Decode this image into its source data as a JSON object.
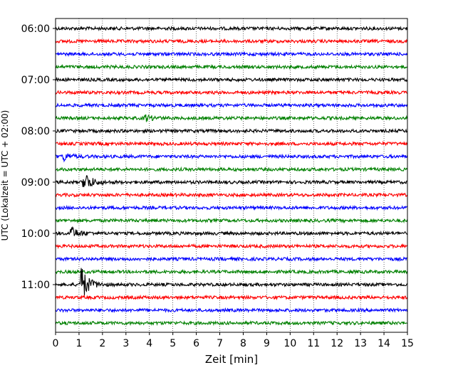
{
  "chart_data": {
    "type": "line",
    "subtype": "helicorder",
    "xlabel": "Zeit  [min]",
    "ylabel": "UTC (Lokalzeit = UTC + 02:00)",
    "xlim": [
      0,
      15
    ],
    "xticks": [
      "0",
      "1",
      "2",
      "3",
      "4",
      "5",
      "6",
      "7",
      "8",
      "9",
      "10",
      "11",
      "12",
      "13",
      "14",
      "15"
    ],
    "yticks": [
      "06:00",
      "07:00",
      "08:00",
      "09:00",
      "10:00",
      "11:00"
    ],
    "grid": "vertical dotted at each minute",
    "colors": [
      "#000000",
      "#ff0000",
      "#0000ff",
      "#008000"
    ],
    "row_start_times": [
      "06:00",
      "06:15",
      "06:30",
      "06:45",
      "07:00",
      "07:15",
      "07:30",
      "07:45",
      "08:00",
      "08:15",
      "08:30",
      "08:45",
      "09:00",
      "09:15",
      "09:30",
      "09:45",
      "10:00",
      "10:15",
      "10:30",
      "10:45",
      "11:00",
      "11:15",
      "11:30",
      "11:45"
    ],
    "row_colors": [
      "black",
      "red",
      "blue",
      "green",
      "black",
      "red",
      "blue",
      "green",
      "black",
      "red",
      "blue",
      "green",
      "black",
      "red",
      "blue",
      "green",
      "black",
      "red",
      "blue",
      "green",
      "black",
      "red",
      "blue",
      "green"
    ],
    "events": [
      {
        "row_start": "07:45",
        "minute": 3.8,
        "peak_rows": 0.25
      },
      {
        "row_start": "08:30",
        "minute": 0.3,
        "peak_rows": 0.35
      },
      {
        "row_start": "09:00",
        "minute": 1.2,
        "peak_rows": 0.9
      },
      {
        "row_start": "10:00",
        "minute": 0.6,
        "peak_rows": 0.6
      },
      {
        "row_start": "11:00",
        "minute": 1.05,
        "peak_rows": 1.6
      }
    ]
  }
}
